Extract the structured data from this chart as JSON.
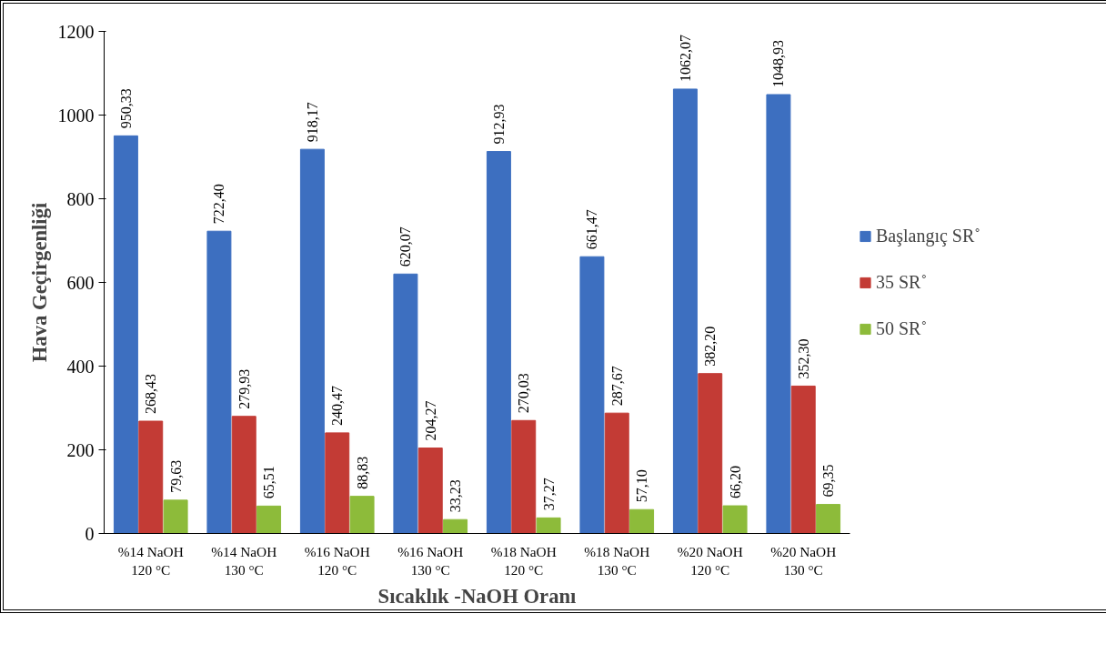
{
  "chart_data": {
    "type": "bar",
    "xlabel": "Sıcaklık -NaOH Oranı",
    "ylabel": "Hava Geçirgenliği",
    "categories": [
      "%14 NaOH\n120 °C",
      "%14 NaOH\n130 °C",
      "%16 NaOH\n120 °C",
      "%16 NaOH\n130 °C",
      "%18 NaOH\n120 °C",
      "%18 NaOH\n130 °C",
      "%20 NaOH\n120 °C",
      "%20 NaOH\n130 °C"
    ],
    "series": [
      {
        "name": "Başlangıç SR˚",
        "color": "#3d6fc0",
        "values": [
          950.33,
          722.4,
          918.17,
          620.07,
          912.93,
          661.47,
          1062.07,
          1048.93
        ],
        "value_labels": [
          "950,33",
          "722,40",
          "918,17",
          "620,07",
          "912,93",
          "661,47",
          "1062,07",
          "1048,93"
        ]
      },
      {
        "name": "35 SR˚",
        "color": "#c33b35",
        "values": [
          268.43,
          279.93,
          240.47,
          204.27,
          270.03,
          287.67,
          382.2,
          352.3
        ],
        "value_labels": [
          "268,43",
          "279,93",
          "240,47",
          "204,27",
          "270,03",
          "287,67",
          "382,20",
          "352,30"
        ]
      },
      {
        "name": "50 SR˚",
        "color": "#8dbb3a",
        "values": [
          79.63,
          65.51,
          88.83,
          33.23,
          37.27,
          57.1,
          66.2,
          69.35
        ],
        "value_labels": [
          "79,63",
          "65,51",
          "88,83",
          "33,23",
          "37,27",
          "57,10",
          "66,20",
          "69,35"
        ]
      }
    ],
    "ylim": [
      0,
      1200
    ],
    "yticks": [
      0,
      200,
      400,
      600,
      800,
      1000,
      1200
    ],
    "grid": false,
    "legend": "right"
  }
}
